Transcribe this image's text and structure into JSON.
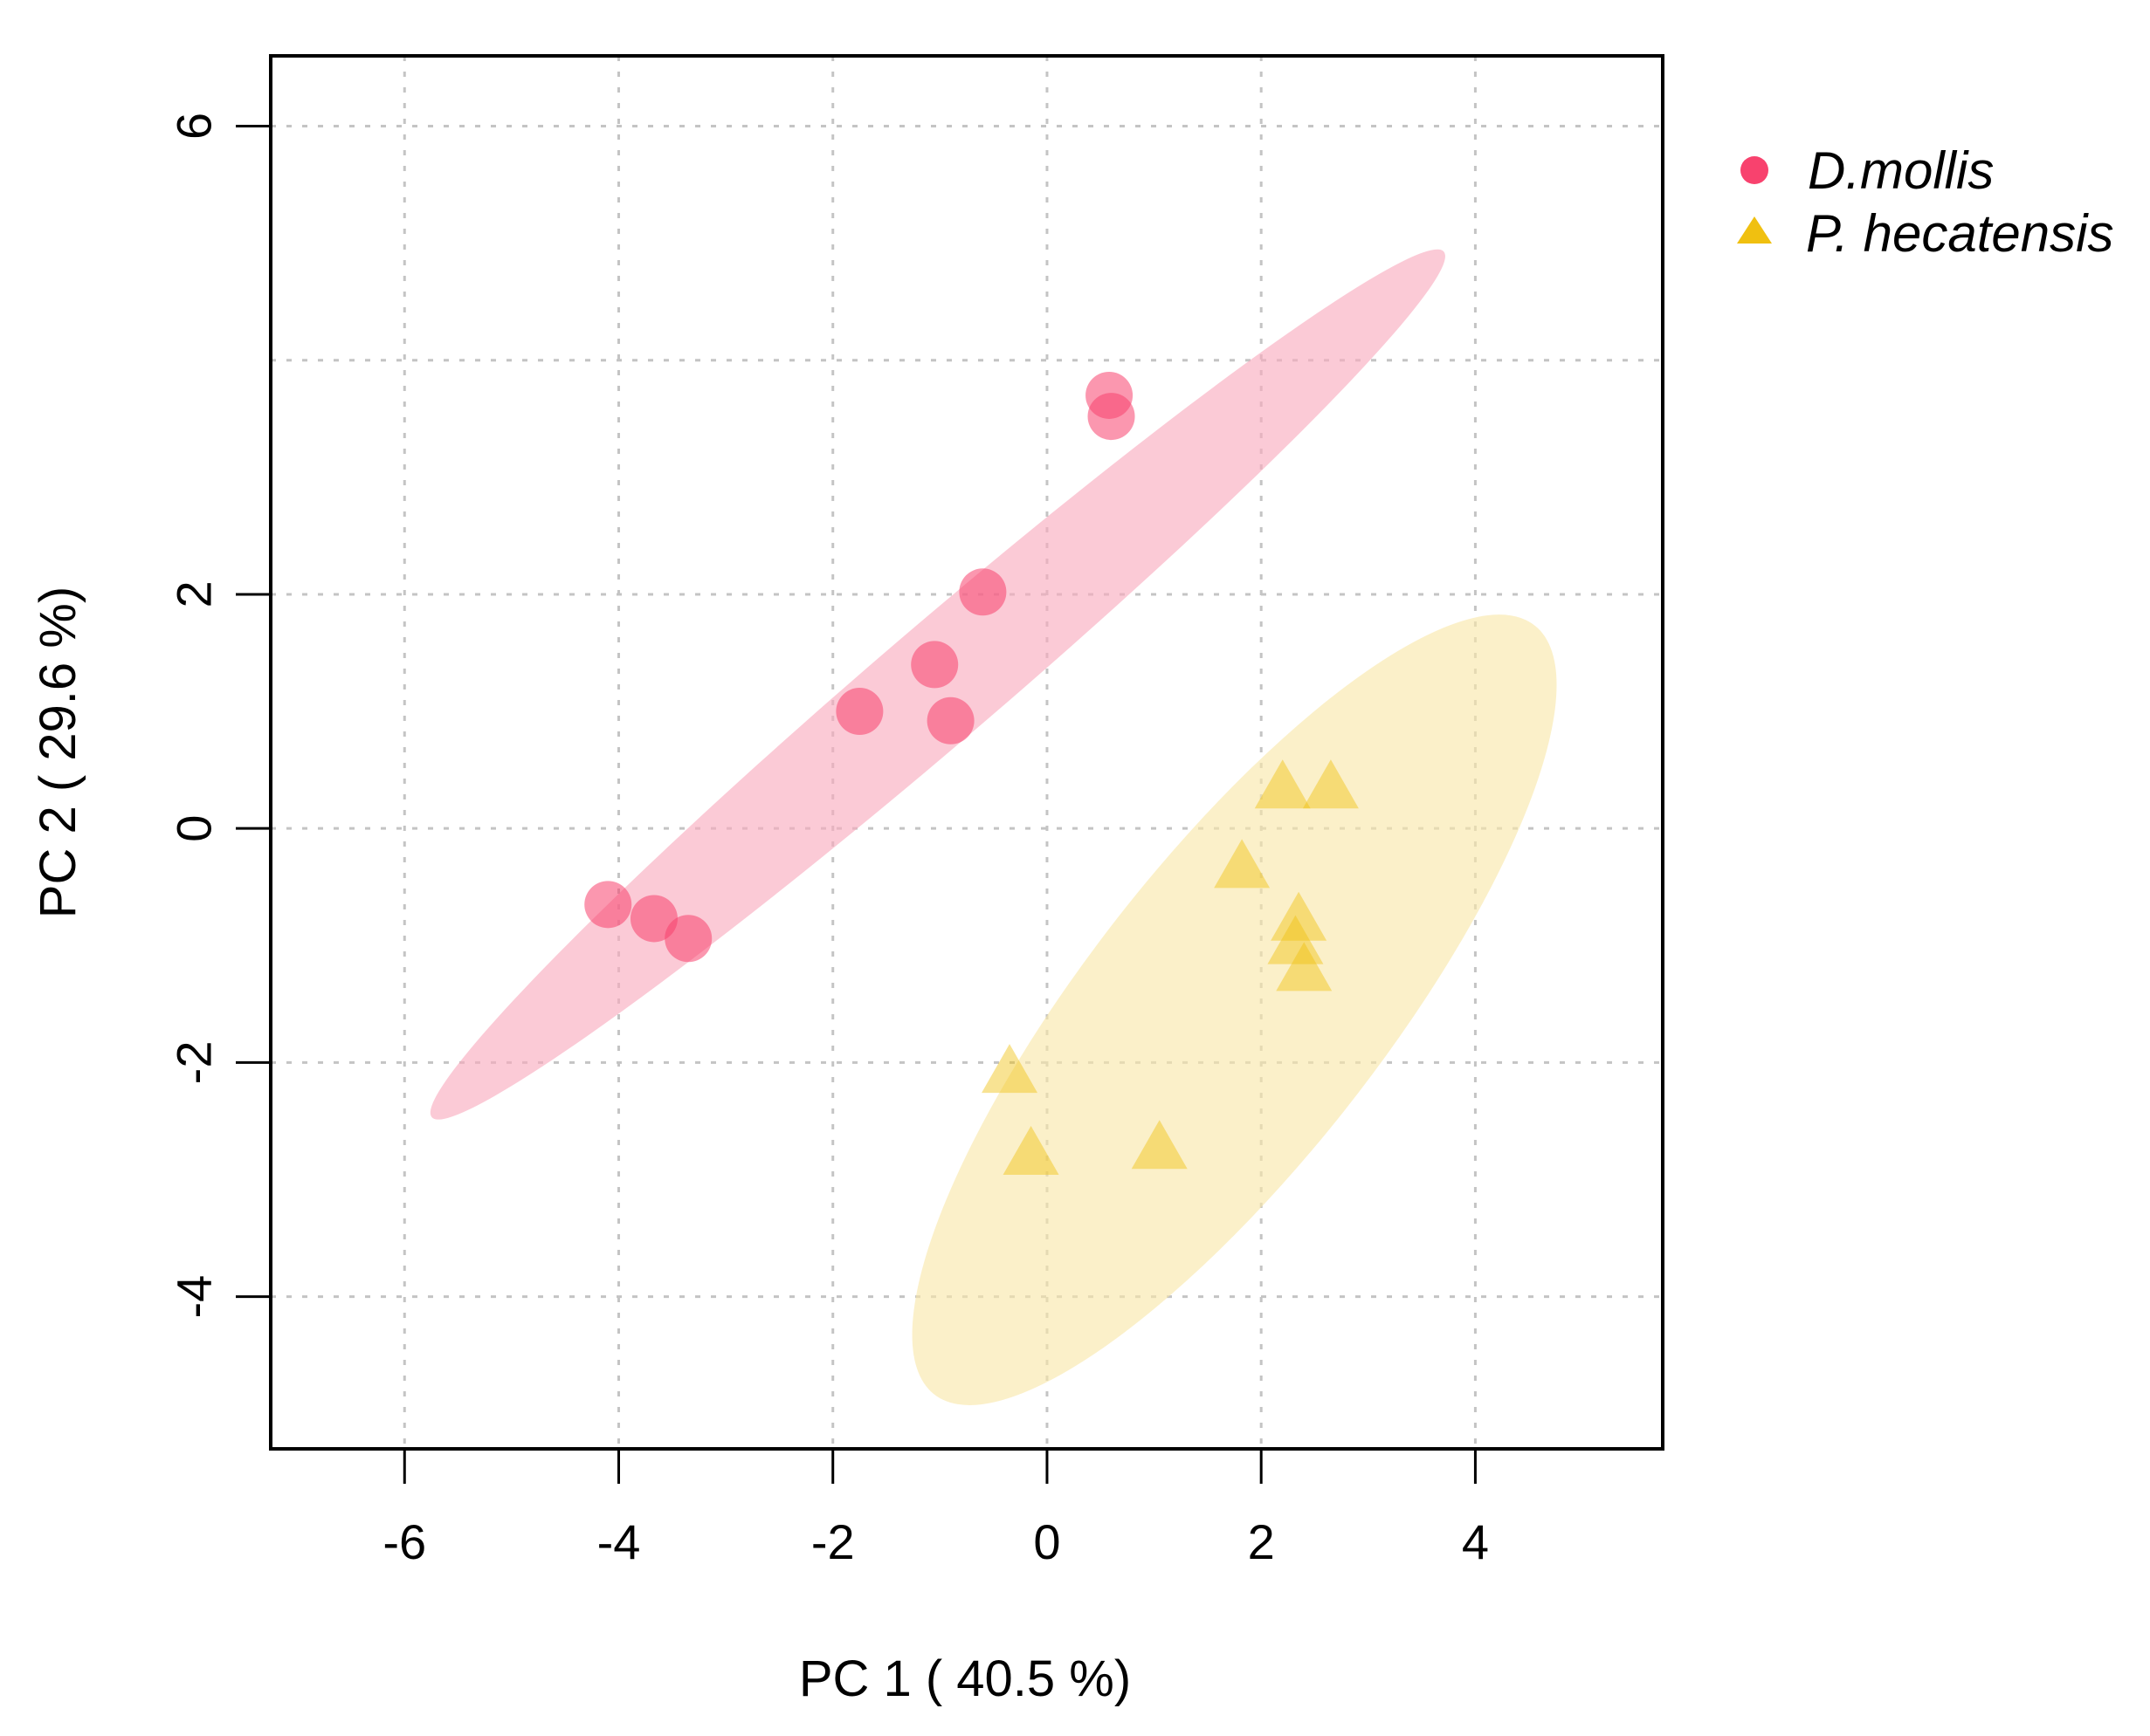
{
  "chart_data": {
    "type": "scatter",
    "title": "",
    "xlabel": "PC 1 ( 40.5 %)",
    "ylabel": "PC 2 ( 29.6 %)",
    "xlim": [
      -7.25,
      5.75
    ],
    "ylim": [
      -5.3,
      6.6
    ],
    "xticks": [
      -6,
      -4,
      -2,
      0,
      2,
      4
    ],
    "yticks": [
      -4,
      -2,
      0,
      2,
      6
    ],
    "ygrid": [
      -4,
      -2,
      0,
      2,
      4,
      6
    ],
    "xtick_labels": [
      "-6",
      "-4",
      "-2",
      "0",
      "2",
      "4"
    ],
    "ytick_labels": [
      "-4",
      "-2",
      "0",
      "2",
      "6"
    ],
    "grid": true,
    "legend_position": "top-right outside",
    "series": [
      {
        "name": "D.mollis",
        "marker": "circle",
        "color": "#f8426e",
        "ellipse_color": "#f9a9bd",
        "points": [
          {
            "x": 0.58,
            "y": 3.7
          },
          {
            "x": 0.6,
            "y": 3.52
          },
          {
            "x": -0.6,
            "y": 2.02
          },
          {
            "x": -1.05,
            "y": 1.4
          },
          {
            "x": -1.75,
            "y": 1.0
          },
          {
            "x": -0.9,
            "y": 0.92
          },
          {
            "x": -4.1,
            "y": -0.65
          },
          {
            "x": -3.67,
            "y": -0.77
          },
          {
            "x": -3.35,
            "y": -0.94
          }
        ],
        "ellipse": {
          "cx": -1.02,
          "cy": 1.23,
          "rx": 6.0,
          "ry": 0.52,
          "angle_deg": 38.0
        }
      },
      {
        "name": "P. hecatensis",
        "marker": "triangle",
        "color": "#f0c010",
        "ellipse_color": "#f8e6a8",
        "points": [
          {
            "x": 2.2,
            "y": 0.38
          },
          {
            "x": 2.65,
            "y": 0.38
          },
          {
            "x": 1.82,
            "y": -0.3
          },
          {
            "x": 2.35,
            "y": -0.75
          },
          {
            "x": 2.32,
            "y": -0.95
          },
          {
            "x": 2.4,
            "y": -1.18
          },
          {
            "x": -0.35,
            "y": -2.05
          },
          {
            "x": -0.15,
            "y": -2.75
          },
          {
            "x": 1.05,
            "y": -2.7
          }
        ],
        "ellipse": {
          "cx": 1.75,
          "cy": -1.55,
          "rx": 4.32,
          "ry": 1.34,
          "angle_deg": 49.0
        }
      }
    ]
  }
}
